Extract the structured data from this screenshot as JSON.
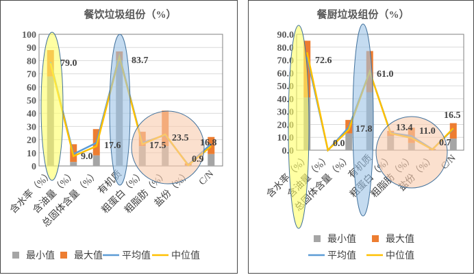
{
  "colors": {
    "min": "#a5a5a5",
    "max": "#ed7d31",
    "mean": "#5b9bd5",
    "median": "#ffc000"
  },
  "chart_data": [
    {
      "type": "bar",
      "title": "餐饮垃圾组份（%）",
      "categories": [
        "含水率（%）",
        "含油量（%）",
        "总固体含量（%）",
        "有机质",
        "粗蛋白（%）",
        "粗脂肪（%）",
        "盐份（%）",
        "C/N"
      ],
      "ylim": [
        0,
        100
      ],
      "yticks": [
        "0",
        "10",
        "20",
        "30",
        "40",
        "50",
        "60",
        "70",
        "80",
        "90",
        "100"
      ],
      "grid": true,
      "legend_position": "bottom",
      "series": [
        {
          "name": "最小值",
          "type": "stacked-bar",
          "values": [
            68,
            3,
            8,
            80,
            15,
            15,
            0.3,
            9
          ]
        },
        {
          "name": "最大值",
          "type": "stacked-bar",
          "values": [
            88,
            16.5,
            28,
            87,
            26,
            42,
            2,
            22
          ]
        },
        {
          "name": "平均值",
          "type": "line",
          "values": [
            79.0,
            9.0,
            17.6,
            83.7,
            17.5,
            23.5,
            0.9,
            16.8
          ]
        },
        {
          "name": "中位值",
          "type": "line",
          "values": [
            78,
            7.5,
            15,
            83,
            16.5,
            24,
            0.5,
            15
          ]
        }
      ],
      "data_labels": [
        "79.0",
        "9.0",
        "17.6",
        "83.7",
        "17.5",
        "23.5",
        "0.9",
        "16.8"
      ]
    },
    {
      "type": "bar",
      "title": "餐厨垃圾组份（%）",
      "categories": [
        "含水率（%）",
        "含油量（%）",
        "总固体含量（%）",
        "有机质",
        "粗蛋白（%）",
        "粗脂肪（%）",
        "盐份（%）",
        "C/N"
      ],
      "ylim": [
        0,
        90
      ],
      "yticks": [
        "0.0",
        "10.0",
        "20.0",
        "30.0",
        "40.0",
        "50.0",
        "60.0",
        "70.0",
        "80.0",
        "90.0"
      ],
      "grid": true,
      "legend_position": "bottom",
      "series": [
        {
          "name": "最小值",
          "type": "stacked-bar",
          "values": [
            41,
            0,
            13,
            45,
            11,
            5.5,
            0.2,
            9
          ]
        },
        {
          "name": "最大值",
          "type": "stacked-bar",
          "values": [
            85,
            0,
            23.5,
            77,
            15,
            17.5,
            1,
            21
          ]
        },
        {
          "name": "平均值",
          "type": "line",
          "values": [
            72.6,
            0.0,
            17.8,
            61.0,
            13.4,
            11.0,
            0.7,
            16.5
          ]
        },
        {
          "name": "中位值",
          "type": "line",
          "values": [
            76,
            0,
            16,
            61,
            13,
            9.5,
            0.5,
            17
          ]
        }
      ],
      "data_labels": [
        "72.6",
        "0.0",
        "17.8",
        "61.0",
        "13.4",
        "11.0",
        "0.7",
        "16.5"
      ]
    }
  ]
}
